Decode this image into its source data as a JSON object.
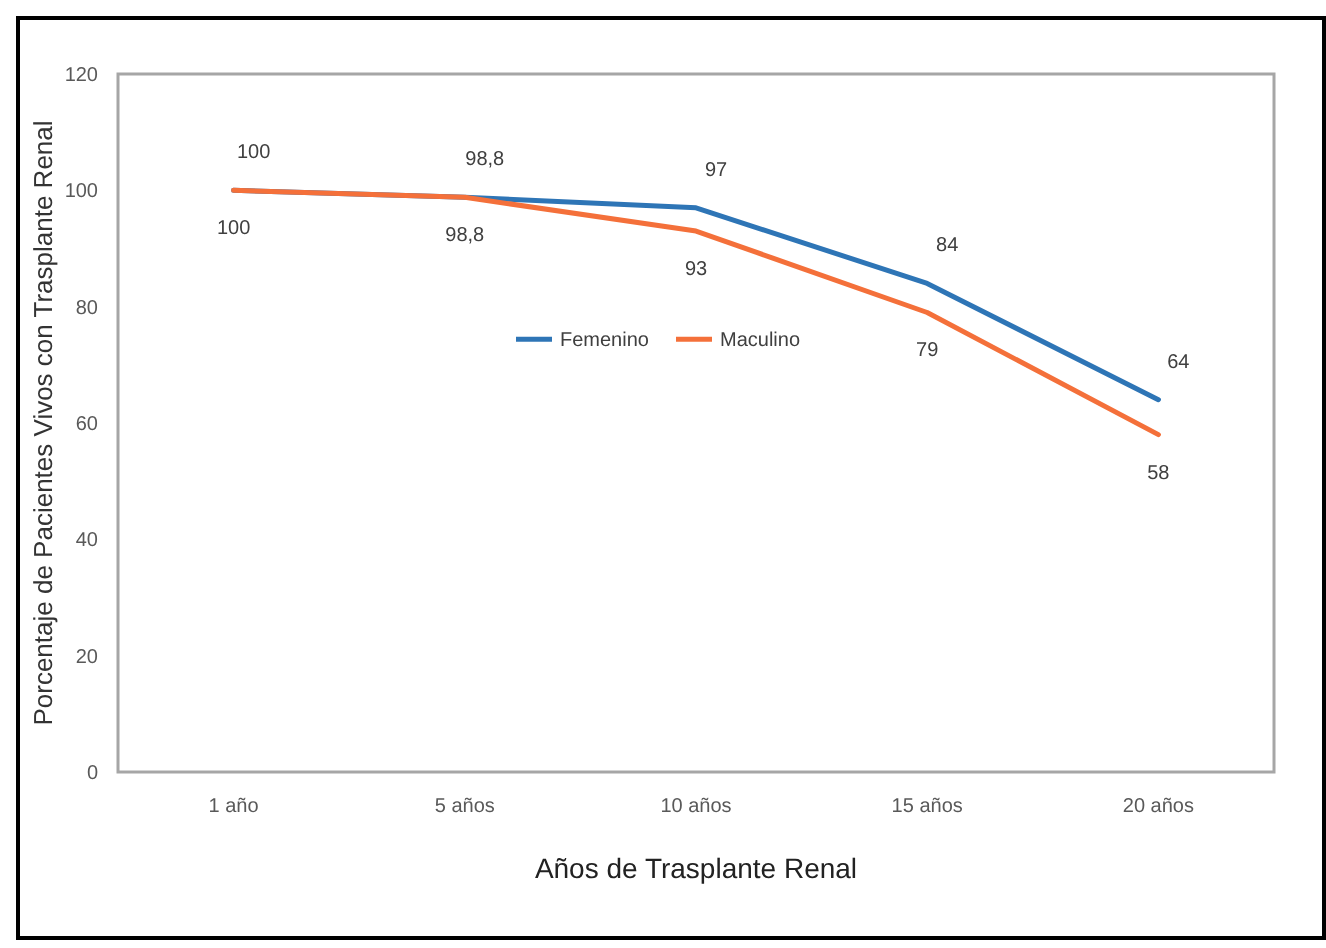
{
  "chart_data": {
    "type": "line",
    "xlabel": "Años de Trasplante Renal",
    "ylabel": "Porcentaje de Pacientes Vivos con Trasplante Renal",
    "categories": [
      "1 año",
      "5 años",
      "10 años",
      "15 años",
      "20 años"
    ],
    "series": [
      {
        "name": "Femenino",
        "color": "#2e75b6",
        "values": [
          100,
          98.8,
          97,
          84,
          64
        ],
        "value_labels": [
          "100",
          "98,8",
          "97",
          "84",
          "64"
        ]
      },
      {
        "name": "Maculino",
        "color": "#f4703a",
        "values": [
          100,
          98.8,
          93,
          79,
          58
        ],
        "value_labels": [
          "100",
          "98,8",
          "93",
          "79",
          "58"
        ]
      }
    ],
    "ylim": [
      0,
      120
    ],
    "yticks": [
      0,
      20,
      40,
      60,
      80,
      100,
      120
    ],
    "grid": false,
    "legend": "center",
    "marker": "none",
    "line_style": "solid"
  }
}
